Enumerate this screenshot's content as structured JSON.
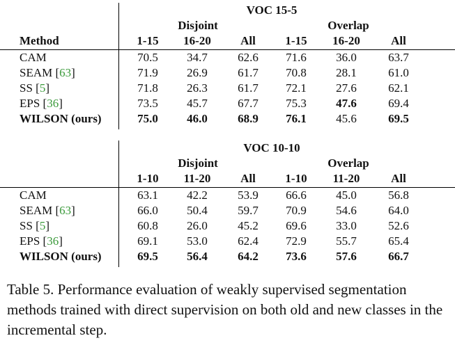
{
  "tables": [
    {
      "title": "VOC 15-5",
      "group_disjoint": "Disjoint",
      "group_overlap": "Overlap",
      "method_header": "Method",
      "cols": [
        "1-15",
        "16-20",
        "All",
        "1-15",
        "16-20",
        "All"
      ],
      "rows": [
        {
          "method": "CAM",
          "cite": "",
          "values": [
            "70.5",
            "34.7",
            "62.6",
            "71.6",
            "36.0",
            "63.7"
          ],
          "bold": [
            false,
            false,
            false,
            false,
            false,
            false
          ]
        },
        {
          "method": "SEAM [",
          "cite": "63",
          "close": "]",
          "values": [
            "71.9",
            "26.9",
            "61.7",
            "70.8",
            "28.1",
            "61.0"
          ],
          "bold": [
            false,
            false,
            false,
            false,
            false,
            false
          ]
        },
        {
          "method": "SS [",
          "cite": "5",
          "close": "]",
          "values": [
            "71.8",
            "26.3",
            "61.7",
            "72.1",
            "27.6",
            "62.1"
          ],
          "bold": [
            false,
            false,
            false,
            false,
            false,
            false
          ]
        },
        {
          "method": "EPS [",
          "cite": "36",
          "close": "]",
          "values": [
            "73.5",
            "45.7",
            "67.7",
            "75.3",
            "47.6",
            "69.4"
          ],
          "bold": [
            false,
            false,
            false,
            false,
            true,
            false
          ]
        },
        {
          "method": "WILSON (ours)",
          "cite": "",
          "values": [
            "75.0",
            "46.0",
            "68.9",
            "76.1",
            "45.6",
            "69.5"
          ],
          "bold": [
            true,
            true,
            true,
            true,
            false,
            true
          ]
        }
      ]
    },
    {
      "title": "VOC 10-10",
      "group_disjoint": "Disjoint",
      "group_overlap": "Overlap",
      "method_header": "",
      "cols": [
        "1-10",
        "11-20",
        "All",
        "1-10",
        "11-20",
        "All"
      ],
      "rows": [
        {
          "method": "CAM",
          "cite": "",
          "values": [
            "63.1",
            "42.2",
            "53.9",
            "66.6",
            "45.0",
            "56.8"
          ],
          "bold": [
            false,
            false,
            false,
            false,
            false,
            false
          ]
        },
        {
          "method": "SEAM [",
          "cite": "63",
          "close": "]",
          "values": [
            "66.0",
            "50.4",
            "59.7",
            "70.9",
            "54.6",
            "64.0"
          ],
          "bold": [
            false,
            false,
            false,
            false,
            false,
            false
          ]
        },
        {
          "method": "SS [",
          "cite": "5",
          "close": "]",
          "values": [
            "60.8",
            "26.0",
            "45.2",
            "69.6",
            "33.0",
            "52.6"
          ],
          "bold": [
            false,
            false,
            false,
            false,
            false,
            false
          ]
        },
        {
          "method": "EPS [",
          "cite": "36",
          "close": "]",
          "values": [
            "69.1",
            "53.0",
            "62.4",
            "72.9",
            "55.7",
            "65.4"
          ],
          "bold": [
            false,
            false,
            false,
            false,
            false,
            false
          ]
        },
        {
          "method": "WILSON (ours)",
          "cite": "",
          "values": [
            "69.5",
            "56.4",
            "64.2",
            "73.6",
            "57.6",
            "66.7"
          ],
          "bold": [
            true,
            true,
            true,
            true,
            true,
            true
          ]
        }
      ]
    }
  ],
  "caption": "Table 5. Performance evaluation of weakly supervised segmentation methods trained with direct supervision on both old and new classes in the incremental step.",
  "colors": {
    "citation": "#3b9a3b"
  }
}
